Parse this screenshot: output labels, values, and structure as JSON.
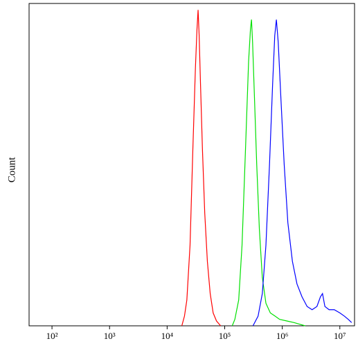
{
  "chart_data": {
    "type": "line",
    "y_label": "Count",
    "x_log": true,
    "xlim": [
      40,
      18000000
    ],
    "ylim": [
      0,
      100
    ],
    "xticks": [
      {
        "value": 100,
        "label": "10²"
      },
      {
        "value": 1000,
        "label": "10³"
      },
      {
        "value": 10000,
        "label": "10⁴"
      },
      {
        "value": 100000,
        "label": "10⁵"
      },
      {
        "value": 1000000,
        "label": "10⁶"
      },
      {
        "value": 10000000,
        "label": "10⁷"
      }
    ],
    "series": [
      {
        "color": "#ff0000",
        "x": [
          18000,
          20000,
          22000,
          25000,
          28000,
          31000,
          33000,
          34500,
          36000,
          38000,
          41000,
          45000,
          50000,
          56000,
          63000,
          72000,
          85000
        ],
        "values": [
          0,
          3,
          8,
          25,
          55,
          80,
          92,
          98,
          90,
          75,
          55,
          35,
          20,
          10,
          4,
          1.5,
          0
        ]
      },
      {
        "color": "#00e000",
        "x": [
          135000,
          150000,
          175000,
          200000,
          230000,
          260000,
          280000,
          292000,
          305000,
          330000,
          360000,
          400000,
          450000,
          520000,
          620000,
          750000,
          900000,
          1200000,
          1600000,
          2000000,
          2500000
        ],
        "values": [
          0,
          2,
          8,
          25,
          55,
          82,
          92,
          95,
          88,
          70,
          50,
          30,
          15,
          7,
          4,
          3,
          2,
          1.5,
          1,
          0.5,
          0
        ]
      },
      {
        "color": "#0000ff",
        "x": [
          310000,
          380000,
          450000,
          520000,
          600000,
          680000,
          740000,
          790000,
          850000,
          950000,
          1080000,
          1250000,
          1500000,
          1800000,
          2200000,
          2700000,
          3300000,
          4000000,
          4600000,
          5000000,
          5500000,
          6500000,
          8000000,
          10000000,
          12000000,
          14000000,
          16000000
        ],
        "values": [
          0,
          3,
          10,
          25,
          50,
          75,
          90,
          95,
          88,
          70,
          50,
          32,
          20,
          13,
          9,
          6,
          5,
          6,
          9,
          10,
          6,
          5,
          5,
          4,
          3,
          2,
          1
        ]
      }
    ]
  }
}
